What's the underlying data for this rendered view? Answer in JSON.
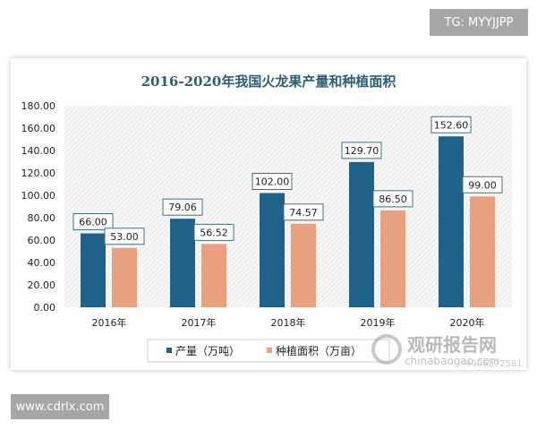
{
  "header_badge": "TG: MYYJJPP",
  "footer_badge": "www.cdrlx.com",
  "watermark": {
    "name": "观研报告网",
    "url": "chinabaogao.com",
    "phone": "4006372581"
  },
  "colors": {
    "production": "#1f6188",
    "area": "#e8a07f",
    "title": "#2b5f73"
  },
  "chart_data": {
    "type": "bar",
    "title": "2016-2020年我国火龙果产量和种植面积",
    "categories": [
      "2016年",
      "2017年",
      "2018年",
      "2019年",
      "2020年"
    ],
    "series": [
      {
        "name": "产量（万吨）",
        "values": [
          66.0,
          79.06,
          102.0,
          129.7,
          152.6
        ]
      },
      {
        "name": "种植面积（万亩）",
        "values": [
          53.0,
          56.52,
          74.57,
          86.5,
          99.0
        ]
      }
    ],
    "ylim": [
      0,
      180
    ],
    "yticks": [
      "0.00",
      "20.00",
      "40.00",
      "60.00",
      "80.00",
      "100.00",
      "120.00",
      "140.00",
      "160.00",
      "180.00"
    ],
    "data_labels": [
      [
        "66.00",
        "79.06",
        "102.00",
        "129.70",
        "152.60"
      ],
      [
        "53.00",
        "56.52",
        "74.57",
        "86.50",
        "99.00"
      ]
    ],
    "grid": false,
    "legend": "bottom"
  }
}
